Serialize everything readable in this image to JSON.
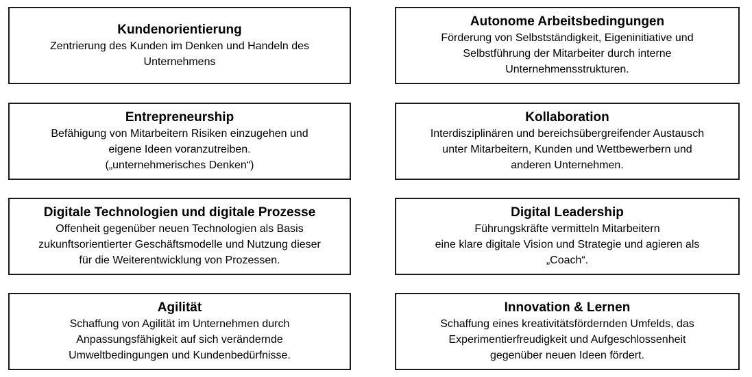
{
  "boxes": [
    {
      "title": "Kundenorientierung",
      "desc": "Zentrierung des Kunden im Denken und Handeln des\nUnternehmens"
    },
    {
      "title": "Autonome Arbeitsbedingungen",
      "desc": "Förderung von Selbstständigkeit, Eigeninitiative und\nSelbstführung der Mitarbeiter durch interne\nUnternehmensstrukturen."
    },
    {
      "title": "Entrepreneurship",
      "desc": "Befähigung von Mitarbeitern Risiken einzugehen und\neigene Ideen voranzutreiben.\n(„unternehmerisches Denken“)"
    },
    {
      "title": "Kollaboration",
      "desc": "Interdisziplinären und bereichsübergreifender Austausch\nunter Mitarbeitern, Kunden und Wettbewerbern und\nanderen Unternehmen."
    },
    {
      "title": "Digitale Technologien und digitale Prozesse",
      "desc": "Offenheit gegenüber neuen Technologien als Basis\nzukunftsorientierter Geschäftsmodelle und Nutzung dieser\nfür die Weiterentwicklung von Prozessen."
    },
    {
      "title": "Digital  Leadership",
      "desc": "Führungskräfte vermitteln Mitarbeitern\neine klare digitale Vision und Strategie und agieren als\n„Coach“."
    },
    {
      "title": "Agilität",
      "desc": "Schaffung von Agilität im Unternehmen durch\nAnpassungsfähigkeit auf sich verändernde\nUmweltbedingungen und Kundenbedürfnisse."
    },
    {
      "title": "Innovation & Lernen",
      "desc": "Schaffung eines kreativitätsfördernden Umfelds, das\nExperimentierfreudigkeit und Aufgeschlossenheit\ngegenüber neuen Ideen fördert."
    }
  ]
}
